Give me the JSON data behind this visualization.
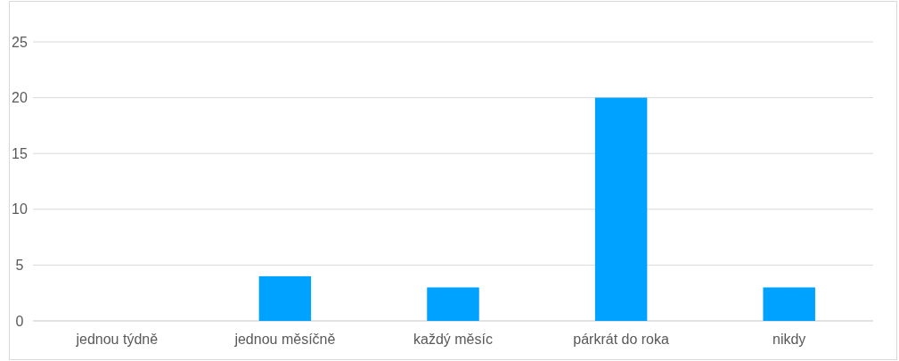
{
  "chart_data": {
    "type": "bar",
    "categories": [
      "jednou týdně",
      "jednou měsíčně",
      "každý měsíc",
      "párkrát do roka",
      "nikdy"
    ],
    "values": [
      0,
      4,
      3,
      20,
      3
    ],
    "color": "#00a2ff",
    "ylim": [
      0,
      25
    ],
    "yticks": [
      0,
      5,
      10,
      15,
      20,
      25
    ],
    "grid": "y"
  }
}
